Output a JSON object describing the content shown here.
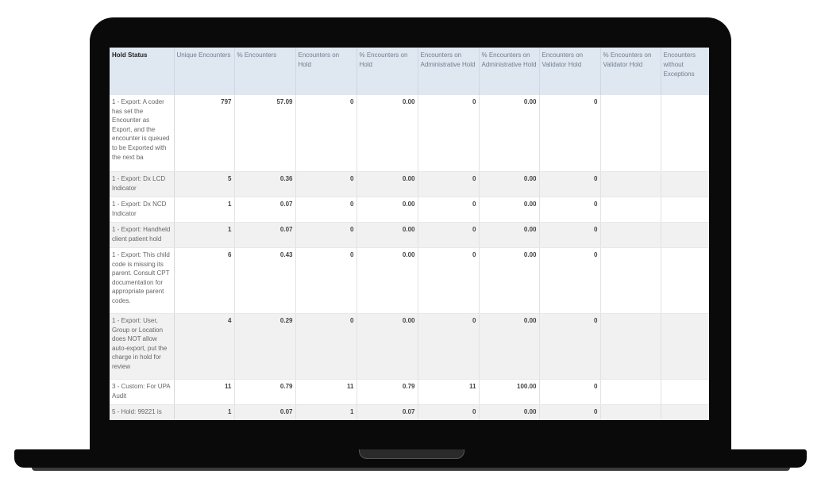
{
  "table": {
    "headers": [
      "Hold Status",
      "Unique Encounters",
      "% Encounters",
      "Encounters on Hold",
      "% Encounters on Hold",
      "Encounters on Administrative Hold",
      "% Encounters on Administrative Hold",
      "Encounters on Validator Hold",
      "% Encounters on Validator Hold",
      "Encounters without Exceptions"
    ],
    "rows": [
      [
        "1 - Export: A coder has set the Encounter as Export, and the encounter is queued to be Exported with the next ba",
        "797",
        "57.09",
        "0",
        "0.00",
        "0",
        "0.00",
        "0",
        "",
        ""
      ],
      [
        "1 - Export: Dx LCD Indicator",
        "5",
        "0.36",
        "0",
        "0.00",
        "0",
        "0.00",
        "0",
        "",
        ""
      ],
      [
        "1 - Export: Dx NCD Indicator",
        "1",
        "0.07",
        "0",
        "0.00",
        "0",
        "0.00",
        "0",
        "",
        ""
      ],
      [
        "1 - Export: Handheld client patient hold",
        "1",
        "0.07",
        "0",
        "0.00",
        "0",
        "0.00",
        "0",
        "",
        ""
      ],
      [
        "1 - Export: This child code is missing its parent. Consult CPT documentation for appropriate parent codes.",
        "6",
        "0.43",
        "0",
        "0.00",
        "0",
        "0.00",
        "0",
        "",
        ""
      ],
      [
        "1 - Export: User, Group or Location does NOT allow auto-export, put the charge in hold for review",
        "4",
        "0.29",
        "0",
        "0.00",
        "0",
        "0.00",
        "0",
        "",
        ""
      ],
      [
        "3 - Custom: For UPA Audit",
        "11",
        "0.79",
        "11",
        "0.79",
        "11",
        "100.00",
        "0",
        "",
        ""
      ],
      [
        "5 - Hold: 99221 is",
        "1",
        "0.07",
        "1",
        "0.07",
        "0",
        "0.00",
        "0",
        "",
        ""
      ]
    ]
  }
}
